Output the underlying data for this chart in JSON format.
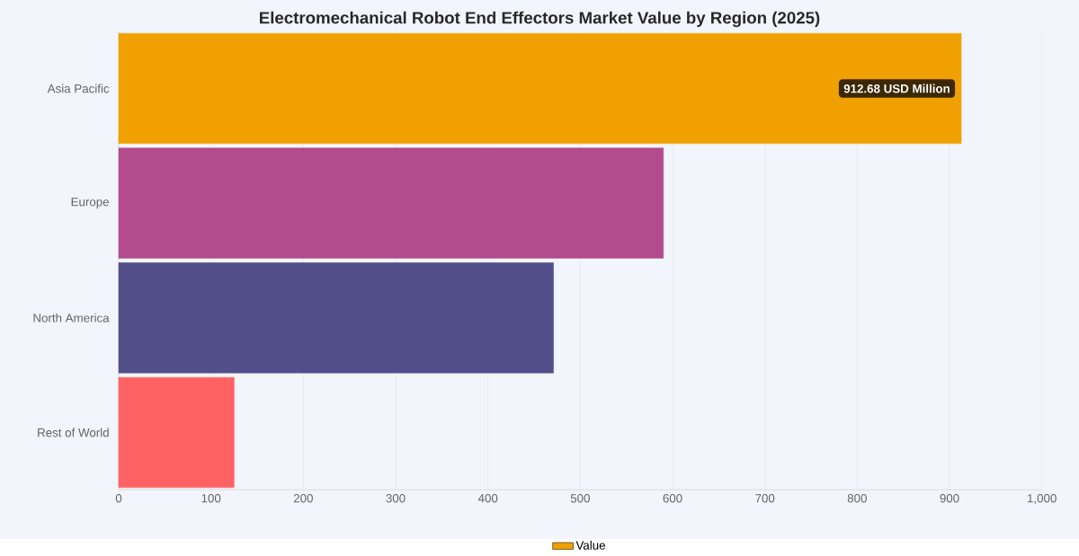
{
  "chart_data": {
    "type": "bar",
    "orientation": "horizontal",
    "title": "Electromechanical Robot End Effectors Market Value by Region (2025)",
    "categories": [
      "Asia Pacific",
      "Europe",
      "North America",
      "Rest of World"
    ],
    "series": [
      {
        "name": "Value",
        "colors": [
          "#f0a000",
          "#b24c8c",
          "#524e8a",
          "#ff6262"
        ],
        "values": [
          912.68,
          590,
          471,
          125
        ],
        "value_labels": [
          "912.68 USD Million",
          null,
          null,
          null
        ]
      }
    ],
    "xlim": [
      0,
      1000
    ],
    "xticks": [
      0,
      100,
      200,
      300,
      400,
      500,
      600,
      700,
      800,
      900,
      {
        "value": 1000,
        "label": "1,000"
      }
    ],
    "grid": "x",
    "legend": "bottom"
  }
}
